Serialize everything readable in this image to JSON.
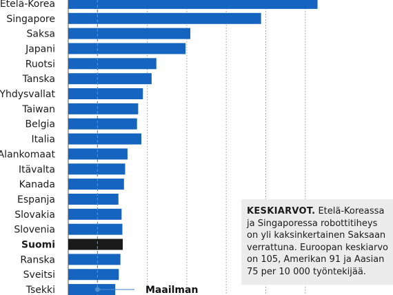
{
  "chart_data": {
    "type": "bar",
    "orientation": "horizontal",
    "title": "",
    "xlabel": "",
    "ylabel": "",
    "categories": [
      "Etelä-Korea",
      "Singapore",
      "Saksa",
      "Japani",
      "Ruotsi",
      "Tanska",
      "Yhdysvallat",
      "Taiwan",
      "Belgia",
      "Italia",
      "Alankomaat",
      "Itävalta",
      "Kanada",
      "Espanja",
      "Slovakia",
      "Slovenia",
      "Suomi",
      "Ranska",
      "Sveitsi",
      "Tsekki"
    ],
    "values": [
      631,
      488,
      309,
      297,
      223,
      211,
      189,
      177,
      174,
      185,
      150,
      144,
      141,
      127,
      135,
      137,
      138,
      132,
      128,
      119
    ],
    "highlight": "Suomi",
    "xlim": [
      0,
      750
    ],
    "gridlines": [
      74,
      200,
      300,
      400,
      500,
      600
    ],
    "world_average_value": 74,
    "world_average_label": "Maailman",
    "colors": {
      "bar": "#1565c0",
      "highlight": "#1a1a1a",
      "average": "#4f8fd0"
    }
  },
  "note": {
    "lead": "KESKIARVOT.",
    "text": "Etelä-Koreassa ja Singaporessa robottitiheys on yli kaksinkertainen Saksaan verrattuna. Euroopan keskiarvo on 105, Amerikan 91 ja Aasian 75 per 10 000 työntekijää."
  }
}
